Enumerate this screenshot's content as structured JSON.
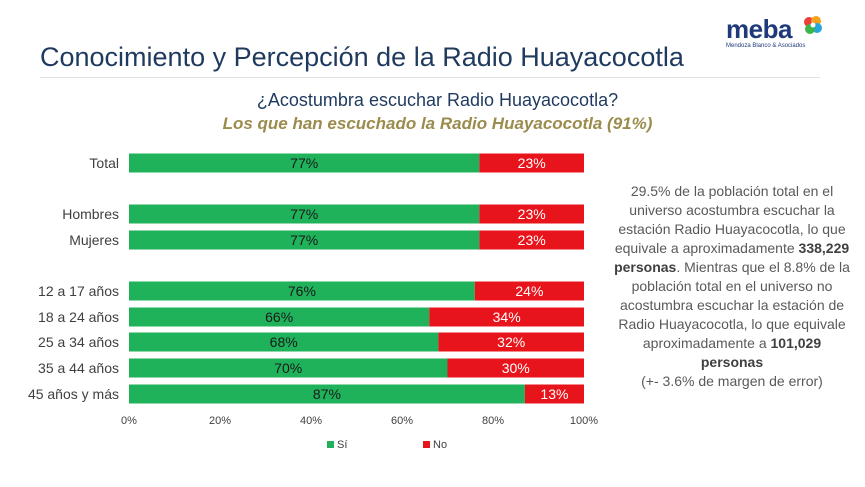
{
  "page": {
    "title": "Conocimiento y Percepción de la Radio Huayacocotla"
  },
  "logo": {
    "word": "meba",
    "tagline": "Mendoza Blanco & Asociados",
    "colors": [
      "#e8423b",
      "#f6a21c",
      "#2aa6df",
      "#3cb54a"
    ]
  },
  "chart_header": {
    "question": "¿Acostumbra escuchar Radio Huayacocotla?",
    "subtitle": "Los que han escuchado la Radio Huayacocotla (91%)"
  },
  "chart_data": {
    "type": "bar",
    "orientation": "horizontal",
    "stacked": true,
    "percent_stacked": true,
    "categories": [
      "Total",
      "Hombres",
      "Mujeres",
      "12 a 17 años",
      "18 a 24 años",
      "25 a 34 años",
      "35 a 44 años",
      "45 años y más"
    ],
    "series": [
      {
        "name": "Sí",
        "color": "#1fb25a",
        "values": [
          77,
          77,
          77,
          76,
          66,
          68,
          70,
          87
        ],
        "labels": [
          "77%",
          "77%",
          "77%",
          "76%",
          "66%",
          "68%",
          "70%",
          "87%"
        ]
      },
      {
        "name": "No",
        "color": "#e8141b",
        "values": [
          23,
          23,
          23,
          24,
          34,
          32,
          30,
          13
        ],
        "labels": [
          "23%",
          "23%",
          "23%",
          "24%",
          "34%",
          "32%",
          "30%",
          "13%"
        ]
      }
    ],
    "xlim": [
      0,
      100
    ],
    "xticks": [
      "0%",
      "20%",
      "40%",
      "60%",
      "80%",
      "100%"
    ],
    "legend": "bottom",
    "grid": false
  },
  "note": {
    "p1": "29.5% de la población total en el universo acostumbra escuchar la estación Radio Huayacocotla, lo que equivale a aproximadamente ",
    "b1": "338,229 personas",
    "p2": ". Mientras que el 8.8% de la población total en el universo no acostumbra escuchar la estación de Radio Huayacocotla, lo que equivale aproximadamente a ",
    "b2": "101,029 personas",
    "p3": "(+- 3.6% de margen de error)"
  }
}
